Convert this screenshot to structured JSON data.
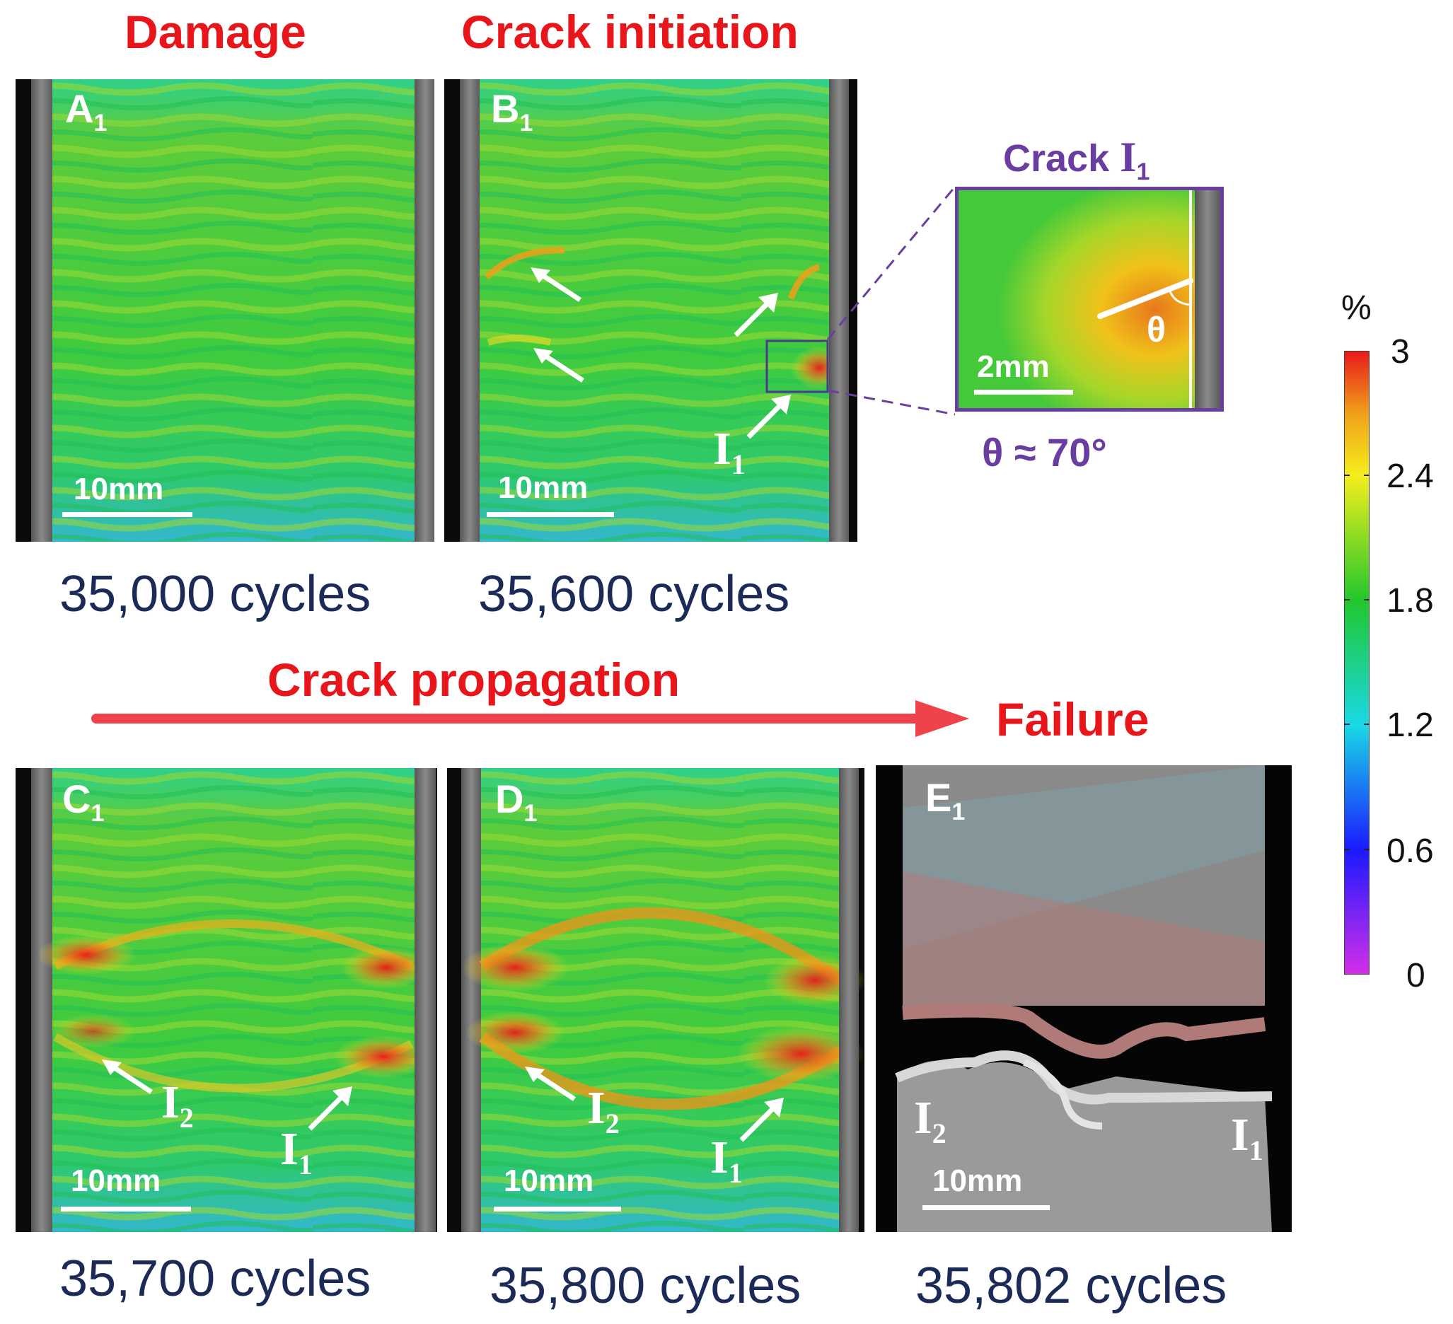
{
  "stages": {
    "damage": "Damage",
    "crack_initiation": "Crack initiation",
    "crack_propagation": "Crack propagation",
    "failure": "Failure"
  },
  "panels": [
    {
      "id": "A",
      "sub": "1",
      "cycles": "35,000 cycles",
      "scale": "10mm"
    },
    {
      "id": "B",
      "sub": "1",
      "cycles": "35,600 cycles",
      "scale": "10mm"
    },
    {
      "id": "C",
      "sub": "1",
      "cycles": "35,700 cycles",
      "scale": "10mm"
    },
    {
      "id": "D",
      "sub": "1",
      "cycles": "35,800 cycles",
      "scale": "10mm"
    },
    {
      "id": "E",
      "sub": "1",
      "cycles": "35,802 cycles",
      "scale": "10mm"
    }
  ],
  "cracks": {
    "i1": {
      "letter": "I",
      "sub": "1"
    },
    "i2": {
      "letter": "I",
      "sub": "2"
    }
  },
  "inset": {
    "title_prefix": "Crack",
    "title_letter": "I",
    "title_sub": "1",
    "scale": "2mm",
    "angle_symbol": "θ",
    "angle_caption": "θ ≈ 70°"
  },
  "colorbar": {
    "unit": "%",
    "ticks": [
      "3",
      "2.4",
      "1.8",
      "1.2",
      "0.6",
      "0"
    ],
    "range": [
      0,
      3
    ],
    "colormap": [
      "#d42ee8",
      "#1a1aff",
      "#19d9e6",
      "#22c72c",
      "#f5ee1c",
      "#f0a01a",
      "#e8181b"
    ]
  },
  "colors": {
    "stage_title": "#e8151b",
    "caption": "#1c2a57",
    "inset_accent": "#6a3ea1",
    "progress_arrow": "#f0424a"
  }
}
